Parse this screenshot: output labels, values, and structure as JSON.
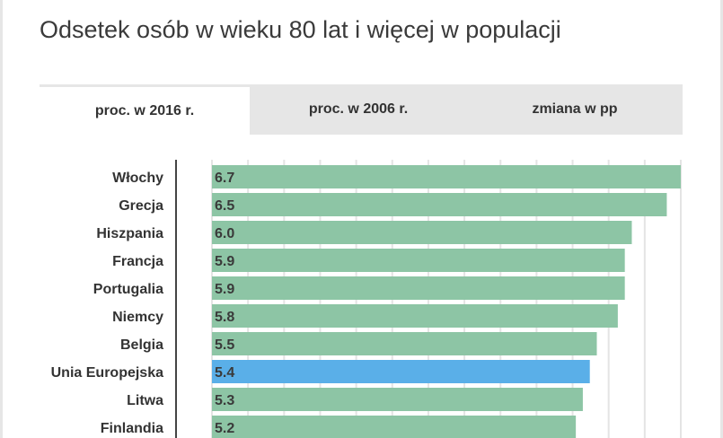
{
  "title": "Odsetek osób w wieku 80 lat i więcej w populacji",
  "tabs": [
    {
      "label": "proc. w 2016 r.",
      "active": true
    },
    {
      "label": "proc. w 2006 r.",
      "active": false
    },
    {
      "label": "zmiana w pp",
      "active": false
    }
  ],
  "colors": {
    "bar": "#8dc5a5",
    "highlight": "#5aafe8",
    "gridline": "#e4e4e4",
    "axis": "#444444"
  },
  "chart_data": {
    "type": "bar",
    "orientation": "horizontal",
    "title": "Odsetek osób w wieku 80 lat i więcej w populacji",
    "categories": [
      "Włochy",
      "Grecja",
      "Hiszpania",
      "Francja",
      "Portugalia",
      "Niemcy",
      "Belgia",
      "Unia Europejska",
      "Litwa",
      "Finlandia"
    ],
    "values": [
      6.7,
      6.5,
      6.0,
      5.9,
      5.9,
      5.8,
      5.5,
      5.4,
      5.3,
      5.2
    ],
    "value_labels": [
      "6.7",
      "6.5",
      "6.0",
      "5.9",
      "5.9",
      "5.8",
      "5.5",
      "5.4",
      "5.3",
      "5.2"
    ],
    "highlight": "Unia Europejska",
    "xlim": [
      0,
      6.7
    ],
    "xlabel": "",
    "ylabel": ""
  }
}
